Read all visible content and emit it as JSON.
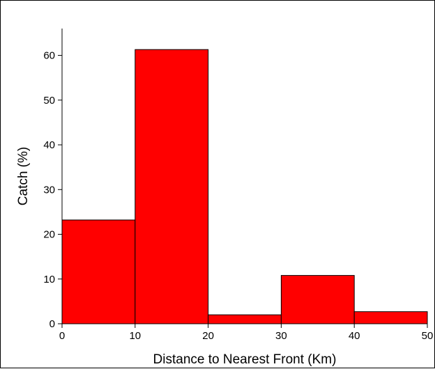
{
  "chart_data": {
    "type": "bar",
    "subtype": "histogram",
    "bin_edges": [
      0,
      10,
      20,
      30,
      40,
      50
    ],
    "values": [
      23.2,
      61.3,
      2.0,
      10.8,
      2.7
    ],
    "xlabel": "Distance to Nearest Front (Km)",
    "ylabel": "Catch (%)",
    "xlim": [
      0,
      50
    ],
    "ylim": [
      0,
      66
    ],
    "x_ticks": [
      0,
      10,
      20,
      30,
      40,
      50
    ],
    "y_ticks": [
      0,
      10,
      20,
      30,
      40,
      50,
      60
    ],
    "grid": false,
    "legend": "none",
    "bar_color": "#ff0000",
    "edge_color": "#000000"
  }
}
